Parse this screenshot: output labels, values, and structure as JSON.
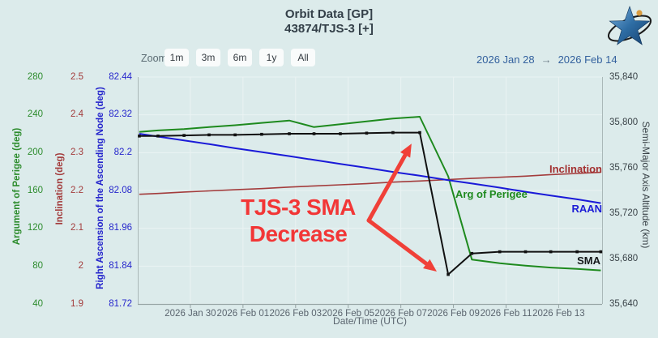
{
  "header": {
    "title": "Orbit Data [GP]",
    "subtitle": "43874/TJS-3 [+]"
  },
  "logo": {
    "name": "CelesTrak star logo",
    "star_light": "#7db1dd",
    "star_dark": "#16406e",
    "orbit_color": "#1a1a1a",
    "dot_color": "#d99c40"
  },
  "toolbar": {
    "zoom_label": "Zoom",
    "buttons": [
      "1m",
      "3m",
      "6m",
      "1y",
      "All"
    ],
    "range": {
      "from": "2026 Jan 28",
      "arrow": "→",
      "to": "2026 Feb 14"
    }
  },
  "annotation": {
    "line1": "TJS-3 SMA",
    "line2": "Decrease",
    "color": "#f23636",
    "arrow_color": "#f04038"
  },
  "chart_data": {
    "type": "line",
    "title": "Orbit Data [GP] 43874/TJS-3",
    "xlabel": "Date/Time (UTC)",
    "grid": true,
    "x_axis": {
      "epoch_day0": "2026 Jan 28",
      "domain_days": [
        0,
        17.65
      ],
      "tick_days": [
        2,
        4,
        6,
        8,
        10,
        12,
        14,
        16
      ],
      "tick_labels": [
        "2026 Jan 30",
        "2026 Feb 01",
        "2026 Feb 03",
        "2026 Feb 05",
        "2026 Feb 07",
        "2026 Feb 09",
        "2026 Feb 11",
        "2026 Feb 13"
      ],
      "tick_color": "#5a646e"
    },
    "y_axes": [
      {
        "id": "argp",
        "label": "Argument of Perigee (deg)",
        "side": "left",
        "min": 40,
        "max": 280,
        "ticks": [
          "280",
          "240",
          "200",
          "160",
          "120",
          "80",
          "40"
        ],
        "tick_color": "#2d8c2d"
      },
      {
        "id": "incl",
        "label": "Inclination (deg)",
        "side": "left",
        "min": 1.9,
        "max": 2.5,
        "ticks": [
          "2.5",
          "2.4",
          "2.3",
          "2.2",
          "2.1",
          "2",
          "1.9"
        ],
        "tick_color": "#a33c3c"
      },
      {
        "id": "raan",
        "label": "Right Ascension of the Ascending Node (deg)",
        "side": "left",
        "min": 81.72,
        "max": 82.44,
        "ticks": [
          "82.44",
          "82.32",
          "82.2",
          "82.08",
          "81.96",
          "81.84",
          "81.72"
        ],
        "tick_color": "#2525cc"
      },
      {
        "id": "sma",
        "label": "Semi-Major Axis Altitude (km)",
        "side": "right",
        "min": 35640,
        "max": 35840,
        "ticks": [
          "35,840",
          "35,800",
          "35,760",
          "35,720",
          "35,680",
          "35,640"
        ],
        "tick_color": "#3a4348"
      }
    ],
    "x_days": [
      0.06,
      0.77,
      1.76,
      2.71,
      3.7,
      4.71,
      5.76,
      6.7,
      7.7,
      8.7,
      9.7,
      10.72,
      11.8,
      12.7,
      13.76,
      14.74,
      15.7,
      16.7,
      17.6
    ],
    "series": [
      {
        "name": "Arg of Perigee",
        "axis": "argp",
        "color": "#1e8a1e",
        "width": 2,
        "markers": false,
        "values": [
          222,
          223.5,
          225,
          227,
          229,
          231.5,
          234,
          227,
          230,
          233,
          236,
          238,
          175,
          87,
          83,
          80.5,
          78.5,
          77,
          75.5
        ]
      },
      {
        "name": "Inclination",
        "axis": "incl",
        "color": "#a33c3c",
        "width": 1.6,
        "markers": false,
        "values": [
          2.19,
          2.192,
          2.196,
          2.199,
          2.202,
          2.205,
          2.209,
          2.212,
          2.215,
          2.218,
          2.222,
          2.225,
          2.229,
          2.232,
          2.235,
          2.238,
          2.242,
          2.245,
          2.248
        ]
      },
      {
        "name": "RAAN",
        "axis": "raan",
        "color": "#1a1ad8",
        "width": 2,
        "markers": false,
        "values": [
          82.26,
          82.251,
          82.239,
          82.227,
          82.214,
          82.202,
          82.189,
          82.177,
          82.164,
          82.152,
          82.139,
          82.127,
          82.113,
          82.102,
          82.089,
          82.076,
          82.064,
          82.052,
          82.04
        ]
      },
      {
        "name": "SMA",
        "axis": "sma",
        "color": "#111111",
        "width": 2,
        "markers": true,
        "values": [
          35788,
          35788,
          35788.5,
          35789,
          35789,
          35789.5,
          35790,
          35790,
          35790,
          35790.5,
          35791,
          35791,
          35666,
          35684.5,
          35686,
          35686,
          35686,
          35686,
          35686
        ]
      }
    ]
  }
}
